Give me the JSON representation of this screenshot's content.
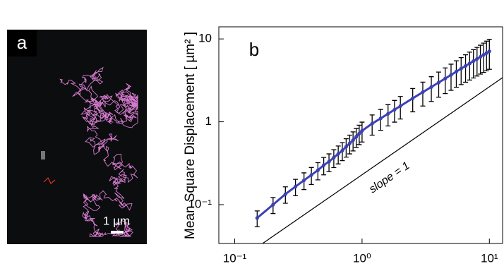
{
  "panel_a": {
    "label": "a",
    "scale_bar": "1 µm"
  },
  "chart_data": {
    "type": "errorbar",
    "panel_label": "b",
    "ylabel": "Mean Square Displacement [ µm² ]",
    "annotation": "slope = 1",
    "xscale": "log",
    "yscale": "log",
    "grid": false,
    "xlim": [
      0.075,
      12.7
    ],
    "ylim": [
      0.034,
      14
    ],
    "xticks": [
      {
        "value": 0.1,
        "label": "10⁻¹"
      },
      {
        "value": 1,
        "label": "10⁰"
      },
      {
        "value": 10,
        "label": "10¹"
      }
    ],
    "yticks": [
      {
        "value": 0.1,
        "label": "10⁻¹"
      },
      1,
      10
    ],
    "x": [
      0.15,
      0.2,
      0.25,
      0.3,
      0.35,
      0.4,
      0.45,
      0.5,
      0.55,
      0.6,
      0.65,
      0.7,
      0.75,
      0.8,
      0.85,
      0.9,
      0.95,
      1.0,
      1.2,
      1.4,
      1.6,
      1.8,
      2.0,
      2.5,
      3.0,
      3.5,
      4.0,
      4.5,
      5.0,
      5.5,
      6.0,
      6.5,
      7.0,
      7.5,
      8.0,
      8.5,
      9.0,
      9.5,
      10.0
    ],
    "series": [
      {
        "color": "#3b41b5",
        "error_color": "#000000",
        "values": [
          0.069,
          0.1,
          0.134,
          0.165,
          0.197,
          0.228,
          0.26,
          0.3,
          0.33,
          0.37,
          0.41,
          0.45,
          0.5,
          0.55,
          0.6,
          0.66,
          0.72,
          0.78,
          0.95,
          1.1,
          1.25,
          1.4,
          1.55,
          1.92,
          2.28,
          2.63,
          2.98,
          3.33,
          3.68,
          4.03,
          4.38,
          4.72,
          5.06,
          5.4,
          5.74,
          6.08,
          6.42,
          6.76,
          7.1
        ],
        "errors": [
          0.015,
          0.022,
          0.03,
          0.037,
          0.045,
          0.053,
          0.061,
          0.071,
          0.08,
          0.09,
          0.1,
          0.11,
          0.125,
          0.14,
          0.155,
          0.17,
          0.19,
          0.21,
          0.26,
          0.31,
          0.36,
          0.41,
          0.47,
          0.6,
          0.73,
          0.87,
          1.0,
          1.14,
          1.28,
          1.42,
          1.57,
          1.72,
          1.87,
          2.02,
          2.17,
          2.32,
          2.48,
          2.64,
          2.8
        ]
      }
    ]
  }
}
